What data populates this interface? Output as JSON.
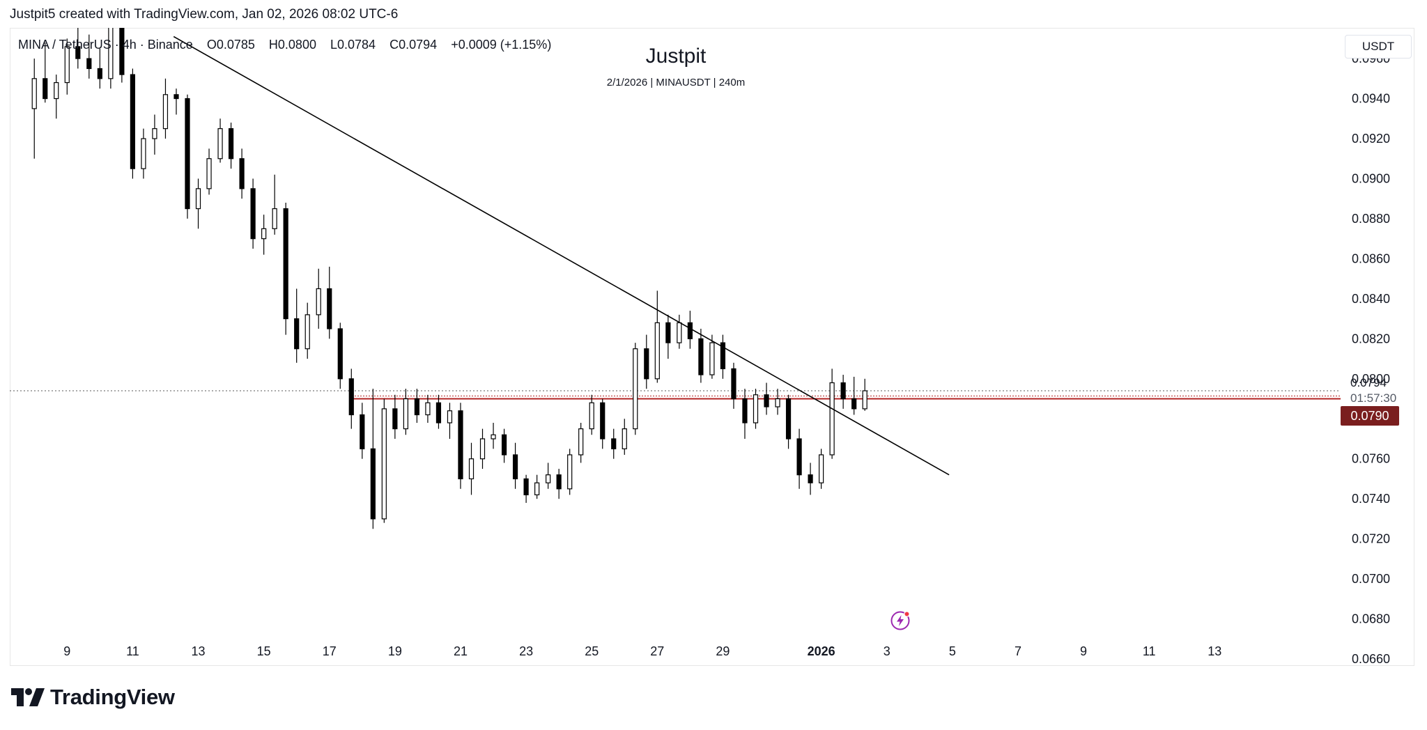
{
  "header": {
    "credit": "Justpit5 created with TradingView.com, Jan 02, 2026 08:02 UTC-6"
  },
  "legend": {
    "symbol": "MINA / TetherUS · 4h · Binance",
    "open": "O0.0785",
    "high": "H0.0800",
    "low": "L0.0784",
    "close": "C0.0794",
    "change": "+0.0009 (+1.15%)"
  },
  "title": {
    "main": "Justpit",
    "sub": "2/1/2026 | MINAUSDT | 240m"
  },
  "axis": {
    "currency": "USDT",
    "last_price": "0.0794",
    "countdown": "01:57:30",
    "marked_price": "0.0790"
  },
  "branding": {
    "wordmark": "TradingView"
  },
  "colors": {
    "candle_up_body": "#ffffff",
    "candle_down_body": "#000000",
    "wick": "#000000",
    "trendline": "#000000",
    "horizontal_line": "#b22222",
    "price_box": "#7a1e1e",
    "bolt_icon": "#9c27b0",
    "notification_dot": "#f23645"
  },
  "chart_data": {
    "type": "candlestick",
    "symbol": "MINA / TetherUS",
    "interval": "4h",
    "exchange": "Binance",
    "y_range": [
      0.066,
      0.0975
    ],
    "y_ticks": [
      "0.0960",
      "0.0940",
      "0.0920",
      "0.0900",
      "0.0880",
      "0.0860",
      "0.0840",
      "0.0820",
      "0.0800",
      "0.0760",
      "0.0740",
      "0.0720",
      "0.0700",
      "0.0680",
      "0.0660"
    ],
    "x_ticks": [
      "9",
      "11",
      "13",
      "15",
      "17",
      "19",
      "21",
      "23",
      "25",
      "27",
      "29",
      "2026",
      "3",
      "5",
      "7",
      "9",
      "11",
      "13"
    ],
    "x_tick_days": [
      9,
      11,
      13,
      15,
      17,
      19,
      21,
      23,
      25,
      27,
      29,
      32,
      34,
      36,
      38,
      40,
      42,
      44
    ],
    "x_range_days": [
      7.4,
      45.8
    ],
    "grid": false,
    "candles": [
      {
        "day": 8.0,
        "o": 0.0935,
        "h": 0.096,
        "l": 0.091,
        "c": 0.095
      },
      {
        "day": 8.33,
        "o": 0.095,
        "h": 0.0968,
        "l": 0.0938,
        "c": 0.094
      },
      {
        "day": 8.67,
        "o": 0.094,
        "h": 0.0952,
        "l": 0.093,
        "c": 0.0948
      },
      {
        "day": 9.0,
        "o": 0.0948,
        "h": 0.097,
        "l": 0.0942,
        "c": 0.0966
      },
      {
        "day": 9.33,
        "o": 0.0966,
        "h": 0.098,
        "l": 0.0955,
        "c": 0.096
      },
      {
        "day": 9.67,
        "o": 0.096,
        "h": 0.0972,
        "l": 0.095,
        "c": 0.0955
      },
      {
        "day": 10.0,
        "o": 0.0955,
        "h": 0.0965,
        "l": 0.0945,
        "c": 0.095
      },
      {
        "day": 10.33,
        "o": 0.095,
        "h": 0.0985,
        "l": 0.0945,
        "c": 0.098
      },
      {
        "day": 10.67,
        "o": 0.098,
        "h": 0.0985,
        "l": 0.0948,
        "c": 0.0952
      },
      {
        "day": 11.0,
        "o": 0.0952,
        "h": 0.0955,
        "l": 0.09,
        "c": 0.0905
      },
      {
        "day": 11.33,
        "o": 0.0905,
        "h": 0.0925,
        "l": 0.09,
        "c": 0.092
      },
      {
        "day": 11.67,
        "o": 0.092,
        "h": 0.0932,
        "l": 0.0912,
        "c": 0.0925
      },
      {
        "day": 12.0,
        "o": 0.0925,
        "h": 0.095,
        "l": 0.092,
        "c": 0.0942
      },
      {
        "day": 12.33,
        "o": 0.0942,
        "h": 0.0945,
        "l": 0.0932,
        "c": 0.094
      },
      {
        "day": 12.67,
        "o": 0.094,
        "h": 0.0942,
        "l": 0.088,
        "c": 0.0885
      },
      {
        "day": 13.0,
        "o": 0.0885,
        "h": 0.09,
        "l": 0.0875,
        "c": 0.0895
      },
      {
        "day": 13.33,
        "o": 0.0895,
        "h": 0.0915,
        "l": 0.0892,
        "c": 0.091
      },
      {
        "day": 13.67,
        "o": 0.091,
        "h": 0.093,
        "l": 0.0908,
        "c": 0.0925
      },
      {
        "day": 14.0,
        "o": 0.0925,
        "h": 0.0928,
        "l": 0.0905,
        "c": 0.091
      },
      {
        "day": 14.33,
        "o": 0.091,
        "h": 0.0915,
        "l": 0.089,
        "c": 0.0895
      },
      {
        "day": 14.67,
        "o": 0.0895,
        "h": 0.09,
        "l": 0.0865,
        "c": 0.087
      },
      {
        "day": 15.0,
        "o": 0.087,
        "h": 0.0882,
        "l": 0.0862,
        "c": 0.0875
      },
      {
        "day": 15.33,
        "o": 0.0875,
        "h": 0.0902,
        "l": 0.0872,
        "c": 0.0885
      },
      {
        "day": 15.67,
        "o": 0.0885,
        "h": 0.0888,
        "l": 0.0822,
        "c": 0.083
      },
      {
        "day": 16.0,
        "o": 0.083,
        "h": 0.0845,
        "l": 0.0808,
        "c": 0.0815
      },
      {
        "day": 16.33,
        "o": 0.0815,
        "h": 0.0838,
        "l": 0.081,
        "c": 0.0832
      },
      {
        "day": 16.67,
        "o": 0.0832,
        "h": 0.0855,
        "l": 0.0825,
        "c": 0.0845
      },
      {
        "day": 17.0,
        "o": 0.0845,
        "h": 0.0856,
        "l": 0.082,
        "c": 0.0825
      },
      {
        "day": 17.33,
        "o": 0.0825,
        "h": 0.0828,
        "l": 0.0795,
        "c": 0.08
      },
      {
        "day": 17.67,
        "o": 0.08,
        "h": 0.0805,
        "l": 0.0775,
        "c": 0.0782
      },
      {
        "day": 18.0,
        "o": 0.0782,
        "h": 0.0788,
        "l": 0.076,
        "c": 0.0765
      },
      {
        "day": 18.33,
        "o": 0.0765,
        "h": 0.0795,
        "l": 0.0725,
        "c": 0.073
      },
      {
        "day": 18.67,
        "o": 0.073,
        "h": 0.079,
        "l": 0.0728,
        "c": 0.0785
      },
      {
        "day": 19.0,
        "o": 0.0785,
        "h": 0.0792,
        "l": 0.077,
        "c": 0.0775
      },
      {
        "day": 19.33,
        "o": 0.0775,
        "h": 0.0795,
        "l": 0.0772,
        "c": 0.079
      },
      {
        "day": 19.67,
        "o": 0.079,
        "h": 0.0795,
        "l": 0.0778,
        "c": 0.0782
      },
      {
        "day": 20.0,
        "o": 0.0782,
        "h": 0.0792,
        "l": 0.0778,
        "c": 0.0788
      },
      {
        "day": 20.33,
        "o": 0.0788,
        "h": 0.0792,
        "l": 0.0775,
        "c": 0.0778
      },
      {
        "day": 20.67,
        "o": 0.0778,
        "h": 0.0788,
        "l": 0.077,
        "c": 0.0784
      },
      {
        "day": 21.0,
        "o": 0.0784,
        "h": 0.0788,
        "l": 0.0745,
        "c": 0.075
      },
      {
        "day": 21.33,
        "o": 0.075,
        "h": 0.0768,
        "l": 0.0742,
        "c": 0.076
      },
      {
        "day": 21.67,
        "o": 0.076,
        "h": 0.0775,
        "l": 0.0755,
        "c": 0.077
      },
      {
        "day": 22.0,
        "o": 0.077,
        "h": 0.0778,
        "l": 0.0765,
        "c": 0.0772
      },
      {
        "day": 22.33,
        "o": 0.0772,
        "h": 0.0775,
        "l": 0.0758,
        "c": 0.0762
      },
      {
        "day": 22.67,
        "o": 0.0762,
        "h": 0.0768,
        "l": 0.0745,
        "c": 0.075
      },
      {
        "day": 23.0,
        "o": 0.075,
        "h": 0.0752,
        "l": 0.0738,
        "c": 0.0742
      },
      {
        "day": 23.33,
        "o": 0.0742,
        "h": 0.0752,
        "l": 0.074,
        "c": 0.0748
      },
      {
        "day": 23.67,
        "o": 0.0748,
        "h": 0.0758,
        "l": 0.0745,
        "c": 0.0752
      },
      {
        "day": 24.0,
        "o": 0.0752,
        "h": 0.0755,
        "l": 0.074,
        "c": 0.0745
      },
      {
        "day": 24.33,
        "o": 0.0745,
        "h": 0.0765,
        "l": 0.0742,
        "c": 0.0762
      },
      {
        "day": 24.67,
        "o": 0.0762,
        "h": 0.0778,
        "l": 0.0758,
        "c": 0.0775
      },
      {
        "day": 25.0,
        "o": 0.0775,
        "h": 0.0792,
        "l": 0.0772,
        "c": 0.0788
      },
      {
        "day": 25.33,
        "o": 0.0788,
        "h": 0.079,
        "l": 0.0765,
        "c": 0.077
      },
      {
        "day": 25.67,
        "o": 0.077,
        "h": 0.0775,
        "l": 0.076,
        "c": 0.0765
      },
      {
        "day": 26.0,
        "o": 0.0765,
        "h": 0.078,
        "l": 0.0762,
        "c": 0.0775
      },
      {
        "day": 26.33,
        "o": 0.0775,
        "h": 0.0818,
        "l": 0.0772,
        "c": 0.0815
      },
      {
        "day": 26.67,
        "o": 0.0815,
        "h": 0.0822,
        "l": 0.0795,
        "c": 0.08
      },
      {
        "day": 27.0,
        "o": 0.08,
        "h": 0.0844,
        "l": 0.0798,
        "c": 0.0828
      },
      {
        "day": 27.33,
        "o": 0.0828,
        "h": 0.0832,
        "l": 0.081,
        "c": 0.0818
      },
      {
        "day": 27.67,
        "o": 0.0818,
        "h": 0.0832,
        "l": 0.0815,
        "c": 0.0828
      },
      {
        "day": 28.0,
        "o": 0.0828,
        "h": 0.0834,
        "l": 0.0815,
        "c": 0.082
      },
      {
        "day": 28.33,
        "o": 0.082,
        "h": 0.0825,
        "l": 0.0798,
        "c": 0.0802
      },
      {
        "day": 28.67,
        "o": 0.0802,
        "h": 0.0822,
        "l": 0.08,
        "c": 0.0818
      },
      {
        "day": 29.0,
        "o": 0.0818,
        "h": 0.0822,
        "l": 0.08,
        "c": 0.0805
      },
      {
        "day": 29.33,
        "o": 0.0805,
        "h": 0.0808,
        "l": 0.0785,
        "c": 0.079
      },
      {
        "day": 29.67,
        "o": 0.079,
        "h": 0.0795,
        "l": 0.077,
        "c": 0.0778
      },
      {
        "day": 30.0,
        "o": 0.0778,
        "h": 0.0795,
        "l": 0.0775,
        "c": 0.0792
      },
      {
        "day": 30.33,
        "o": 0.0792,
        "h": 0.0798,
        "l": 0.0782,
        "c": 0.0786
      },
      {
        "day": 30.67,
        "o": 0.0786,
        "h": 0.0795,
        "l": 0.0782,
        "c": 0.079
      },
      {
        "day": 31.0,
        "o": 0.079,
        "h": 0.0792,
        "l": 0.0765,
        "c": 0.077
      },
      {
        "day": 31.33,
        "o": 0.077,
        "h": 0.0775,
        "l": 0.0745,
        "c": 0.0752
      },
      {
        "day": 31.67,
        "o": 0.0752,
        "h": 0.0758,
        "l": 0.0742,
        "c": 0.0748
      },
      {
        "day": 32.0,
        "o": 0.0748,
        "h": 0.0765,
        "l": 0.0745,
        "c": 0.0762
      },
      {
        "day": 32.33,
        "o": 0.0762,
        "h": 0.0805,
        "l": 0.076,
        "c": 0.0798
      },
      {
        "day": 32.67,
        "o": 0.0798,
        "h": 0.0802,
        "l": 0.0785,
        "c": 0.079
      },
      {
        "day": 33.0,
        "o": 0.079,
        "h": 0.0801,
        "l": 0.0782,
        "c": 0.0785
      },
      {
        "day": 33.33,
        "o": 0.0785,
        "h": 0.08,
        "l": 0.0784,
        "c": 0.0794
      }
    ],
    "trendline": {
      "start": {
        "day": 12.25,
        "price": 0.0971
      },
      "end": {
        "day": 35.9,
        "price": 0.0752
      }
    },
    "horizontal_line_price": 0.079,
    "last_price_dotted_line": 0.0794
  }
}
